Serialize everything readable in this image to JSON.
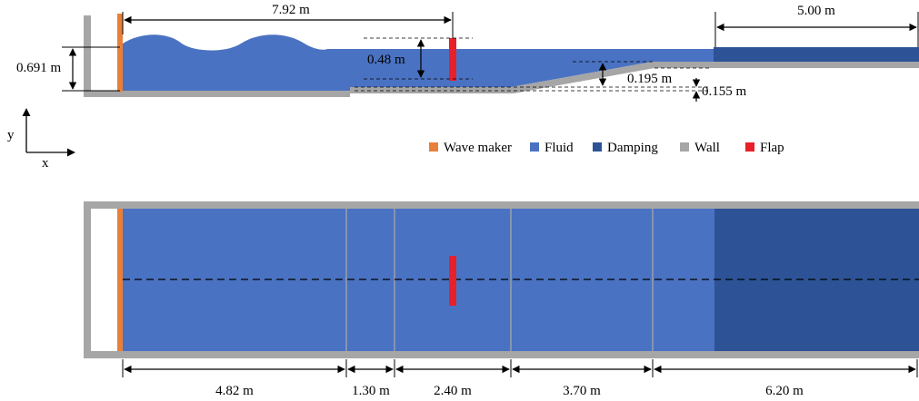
{
  "colors": {
    "wave_maker": "#E8803A",
    "fluid": "#4A72C2",
    "damping": "#2D5396",
    "wall": "#A6A6A6",
    "flap": "#E8202A"
  },
  "legend": [
    {
      "label": "Wave maker",
      "color_key": "wave_maker"
    },
    {
      "label": "Fluid",
      "color_key": "fluid"
    },
    {
      "label": "Damping",
      "color_key": "damping"
    },
    {
      "label": "Wall",
      "color_key": "wall"
    },
    {
      "label": "Flap",
      "color_key": "flap"
    }
  ],
  "axes": {
    "y": "y",
    "x": "x"
  },
  "side_view": {
    "dim_wavemaker_to_flap": "7.92 m",
    "dim_damping_length": "5.00 m",
    "dim_water_depth": "0.691 m",
    "dim_flap_height": "0.48 m",
    "dim_step_depth": "0.195 m",
    "dim_step_height": "0.155 m"
  },
  "top_view": {
    "segments": [
      "4.82 m",
      "1.30 m",
      "2.40 m",
      "3.70 m",
      "6.20 m"
    ]
  }
}
